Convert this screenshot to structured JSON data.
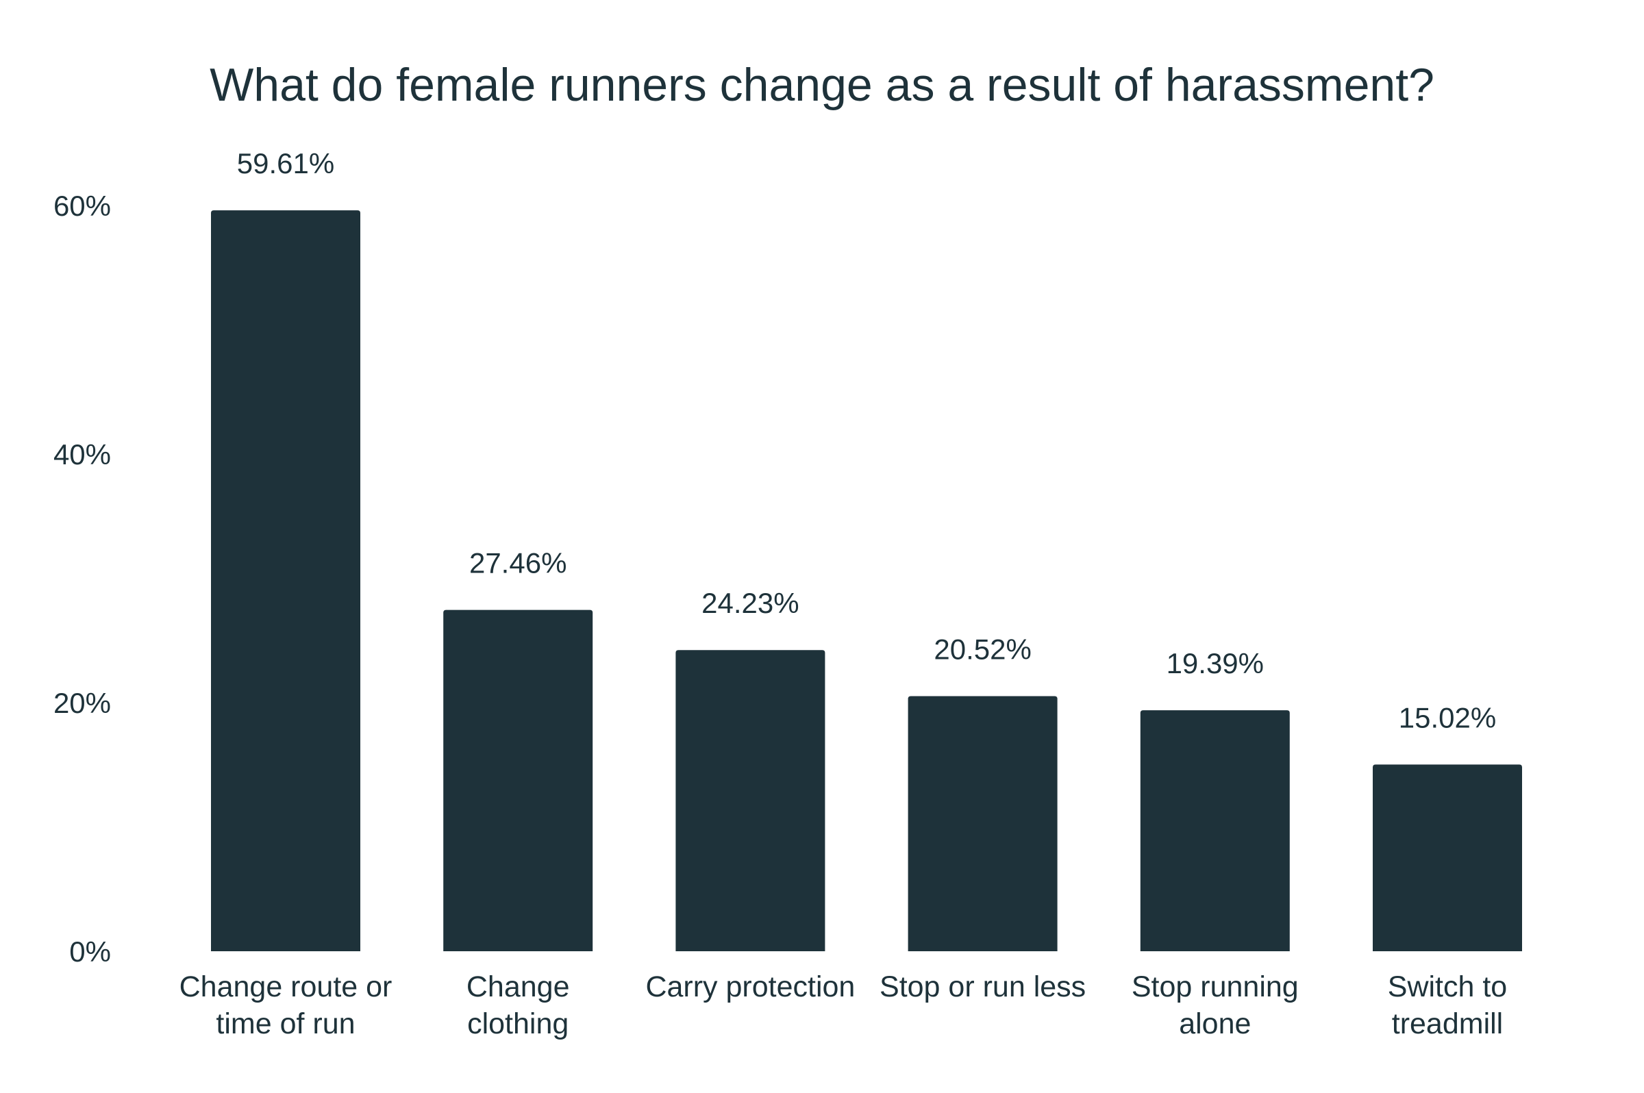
{
  "chart_data": {
    "type": "bar",
    "title": "What do female runners change as a result of harassment?",
    "xlabel": "",
    "ylabel": "",
    "categories": [
      [
        "Change route or",
        "time of run"
      ],
      [
        "Change",
        "clothing"
      ],
      [
        "Carry protection"
      ],
      [
        "Stop or run less"
      ],
      [
        "Stop running",
        "alone"
      ],
      [
        "Switch to",
        "treadmill"
      ]
    ],
    "values": [
      59.61,
      27.46,
      24.23,
      20.52,
      19.39,
      15.02
    ],
    "data_labels": [
      "59.61%",
      "27.46%",
      "24.23%",
      "20.52%",
      "19.39%",
      "15.02%"
    ],
    "ylim": [
      0,
      60
    ],
    "yticks": [
      0,
      20,
      40,
      60
    ],
    "ytick_labels": [
      "0%",
      "20%",
      "40%",
      "60%"
    ],
    "grid": false,
    "legend": "none",
    "bar_color": "#1e323a",
    "text_color": "#1e323a"
  }
}
